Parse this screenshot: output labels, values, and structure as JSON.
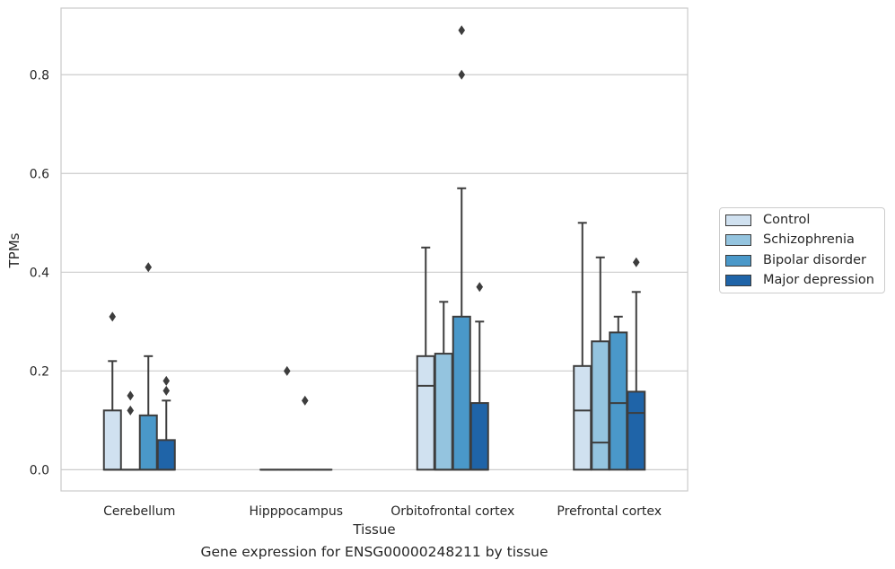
{
  "chart_data": {
    "type": "box",
    "caption": "Gene expression for ENSG00000248211 by tissue",
    "xlabel": "Tissue",
    "ylabel": "TPMs",
    "ylim": [
      -0.043,
      0.935
    ],
    "yticks": [
      "0.0",
      "0.2",
      "0.4",
      "0.6",
      "0.8"
    ],
    "ytick_values": [
      0.0,
      0.2,
      0.4,
      0.6,
      0.8
    ],
    "categories": [
      "Cerebellum",
      "Hipppocampus",
      "Orbitofrontal cortex",
      "Prefrontal cortex"
    ],
    "grid": true,
    "legend_position": "outside-right",
    "series": [
      {
        "name": "Control",
        "color": "#d0e1f0",
        "boxes": [
          {
            "q1": 0.0,
            "median": 0.0,
            "q3": 0.12,
            "whisker_low": 0.0,
            "whisker_high": 0.22,
            "outliers": [
              0.31
            ]
          },
          {
            "q1": 0.0,
            "median": 0.0,
            "q3": 0.0,
            "whisker_low": 0.0,
            "whisker_high": 0.0,
            "outliers": []
          },
          {
            "q1": 0.0,
            "median": 0.17,
            "q3": 0.23,
            "whisker_low": 0.0,
            "whisker_high": 0.45,
            "outliers": []
          },
          {
            "q1": 0.0,
            "median": 0.12,
            "q3": 0.21,
            "whisker_low": 0.0,
            "whisker_high": 0.5,
            "outliers": []
          }
        ]
      },
      {
        "name": "Schizophrenia",
        "color": "#94c4df",
        "boxes": [
          {
            "q1": 0.0,
            "median": 0.0,
            "q3": 0.0,
            "whisker_low": 0.0,
            "whisker_high": 0.0,
            "outliers": [
              0.12,
              0.15
            ]
          },
          {
            "q1": 0.0,
            "median": 0.0,
            "q3": 0.0,
            "whisker_low": 0.0,
            "whisker_high": 0.0,
            "outliers": [
              0.2
            ]
          },
          {
            "q1": 0.0,
            "median": 0.0,
            "q3": 0.235,
            "whisker_low": 0.0,
            "whisker_high": 0.34,
            "outliers": []
          },
          {
            "q1": 0.0,
            "median": 0.055,
            "q3": 0.26,
            "whisker_low": 0.0,
            "whisker_high": 0.43,
            "outliers": []
          }
        ]
      },
      {
        "name": "Bipolar disorder",
        "color": "#4a98c9",
        "boxes": [
          {
            "q1": 0.0,
            "median": 0.0,
            "q3": 0.11,
            "whisker_low": 0.0,
            "whisker_high": 0.23,
            "outliers": [
              0.41
            ]
          },
          {
            "q1": 0.0,
            "median": 0.0,
            "q3": 0.0,
            "whisker_low": 0.0,
            "whisker_high": 0.0,
            "outliers": [
              0.14
            ]
          },
          {
            "q1": 0.0,
            "median": 0.0,
            "q3": 0.31,
            "whisker_low": 0.0,
            "whisker_high": 0.57,
            "outliers": [
              0.8,
              0.89
            ]
          },
          {
            "q1": 0.0,
            "median": 0.135,
            "q3": 0.278,
            "whisker_low": 0.0,
            "whisker_high": 0.31,
            "outliers": []
          }
        ]
      },
      {
        "name": "Major depression",
        "color": "#1f64a8",
        "boxes": [
          {
            "q1": 0.0,
            "median": 0.0,
            "q3": 0.06,
            "whisker_low": 0.0,
            "whisker_high": 0.14,
            "outliers": [
              0.16,
              0.18
            ]
          },
          {
            "q1": 0.0,
            "median": 0.0,
            "q3": 0.0,
            "whisker_low": 0.0,
            "whisker_high": 0.0,
            "outliers": []
          },
          {
            "q1": 0.0,
            "median": 0.0,
            "q3": 0.135,
            "whisker_low": 0.0,
            "whisker_high": 0.3,
            "outliers": [
              0.37
            ]
          },
          {
            "q1": 0.0,
            "median": 0.115,
            "q3": 0.158,
            "whisker_low": 0.0,
            "whisker_high": 0.36,
            "outliers": [
              0.42
            ]
          }
        ]
      }
    ]
  }
}
